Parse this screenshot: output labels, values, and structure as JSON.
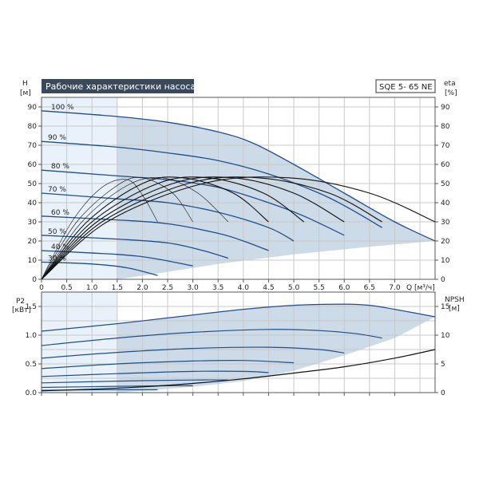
{
  "header": {
    "title": "Рабочие характеристики насоса",
    "model": "SQE 5- 65 NE"
  },
  "colors": {
    "curve_blue": "#1f4e8c",
    "curve_black": "#111111",
    "shade": "#cddbe8",
    "shade_light": "#e9f2fb",
    "title_bg": "#3a4a5c"
  },
  "chart_data": [
    {
      "type": "line",
      "name": "head",
      "ylabel_left": "H",
      "yunit_left": "[м]",
      "ylabel_right": "eta",
      "yunit_right": "[%]",
      "xlabel": "Q [м³/ч]",
      "xlim": [
        0,
        7.8
      ],
      "ylim": [
        0,
        95
      ],
      "x_ticks": [
        0,
        0.5,
        1.0,
        1.5,
        2.0,
        2.5,
        3.0,
        3.5,
        4.0,
        4.5,
        5.0,
        5.5,
        6.0,
        6.5,
        7.0
      ],
      "x_tick_labels": [
        "0",
        "0.5",
        "1.0",
        "1.5",
        "2.0",
        "2.5",
        "3.0",
        "3.5",
        "4.0",
        "4.5",
        "5.0",
        "5.5",
        "6.0",
        "6.5",
        "7.0"
      ],
      "y_ticks": [
        0,
        10,
        20,
        30,
        40,
        50,
        60,
        70,
        80,
        90
      ],
      "y_ticks_right": [
        0,
        10,
        20,
        30,
        40,
        50,
        60,
        70,
        80,
        90
      ],
      "speed_curves": [
        {
          "label": "100 %",
          "x": [
            0,
            1.5,
            2.5,
            3.5,
            4.2,
            5.0,
            6.0,
            7.0,
            7.8
          ],
          "y": [
            88,
            85,
            82,
            77,
            71,
            60,
            45,
            30,
            20
          ]
        },
        {
          "label": "90 %",
          "x": [
            0,
            1.5,
            2.5,
            3.5,
            4.5,
            5.5,
            6.1,
            6.75
          ],
          "y": [
            72,
            69,
            66,
            62,
            55,
            45,
            37,
            27
          ]
        },
        {
          "label": "80 %",
          "x": [
            0,
            1.5,
            2.5,
            3.5,
            4.5,
            5.2,
            6.0
          ],
          "y": [
            57,
            54,
            52,
            48,
            40,
            33,
            23
          ]
        },
        {
          "label": "70 %",
          "x": [
            0,
            1.5,
            2.5,
            3.5,
            4.5,
            5.0
          ],
          "y": [
            45,
            42,
            40,
            35,
            27,
            20
          ]
        },
        {
          "label": "60 %",
          "x": [
            0,
            1.5,
            2.5,
            3.5,
            4.0,
            4.5
          ],
          "y": [
            33,
            31,
            29,
            24,
            20,
            15
          ]
        },
        {
          "label": "50 %",
          "x": [
            0,
            1.5,
            2.5,
            3.2,
            3.7
          ],
          "y": [
            23,
            21,
            19,
            15,
            11
          ]
        },
        {
          "label": "40 %",
          "x": [
            0,
            1.5,
            2.2,
            3.0
          ],
          "y": [
            15,
            13,
            11,
            7
          ]
        },
        {
          "label": "30 %",
          "x": [
            0,
            1.0,
            1.7,
            2.3
          ],
          "y": [
            9,
            8,
            6,
            2
          ]
        }
      ],
      "shaded_region": {
        "x": [
          1.5,
          1.5,
          2.5,
          3.5,
          4.2,
          5.0,
          6.0,
          7.0,
          7.8,
          6.5,
          5.0,
          3.5,
          2.3,
          1.5
        ],
        "y": [
          0,
          85,
          82,
          77,
          71,
          60,
          45,
          30,
          20,
          17,
          13,
          8,
          3,
          0
        ]
      },
      "eta_curves": [
        {
          "x": [
            0,
            0.6,
            1.2,
            1.7,
            2.0,
            2.3
          ],
          "y": [
            0,
            30,
            48,
            52,
            44,
            30
          ]
        },
        {
          "x": [
            0,
            0.7,
            1.5,
            2.0,
            2.6,
            3.0
          ],
          "y": [
            0,
            30,
            49,
            53,
            45,
            30
          ]
        },
        {
          "x": [
            0,
            0.8,
            1.7,
            2.4,
            3.1,
            3.7
          ],
          "y": [
            0,
            30,
            49,
            53,
            45,
            30
          ]
        },
        {
          "x": [
            0,
            0.9,
            2.0,
            2.8,
            3.8,
            4.5
          ],
          "y": [
            0,
            30,
            50,
            53,
            45,
            30
          ]
        },
        {
          "x": [
            0,
            1.0,
            2.3,
            3.3,
            4.4,
            5.2
          ],
          "y": [
            0,
            30,
            50,
            53,
            45,
            30
          ]
        },
        {
          "x": [
            0,
            1.1,
            2.6,
            3.8,
            5.0,
            6.0
          ],
          "y": [
            0,
            30,
            50,
            53,
            45,
            30
          ]
        },
        {
          "x": [
            0,
            1.2,
            2.9,
            4.3,
            5.7,
            6.75
          ],
          "y": [
            0,
            30,
            50,
            53,
            45,
            30
          ]
        },
        {
          "x": [
            0,
            1.3,
            3.2,
            4.9,
            6.5,
            7.8
          ],
          "y": [
            0,
            30,
            50,
            53,
            45,
            30
          ]
        }
      ]
    },
    {
      "type": "line",
      "name": "power",
      "ylabel_left": "P2",
      "yunit_left": "[кВт]",
      "ylabel_right": "NPSH",
      "yunit_right": "[м]",
      "xlim": [
        0,
        7.8
      ],
      "ylim": [
        0,
        1.75
      ],
      "y_ticks": [
        0.0,
        0.5,
        1.0,
        1.5
      ],
      "y_tick_labels": [
        "0.0",
        "0.5",
        "1.0",
        "1.5"
      ],
      "y_ticks_right": [
        0,
        5,
        10,
        15
      ],
      "power_curves": [
        {
          "x": [
            0,
            1.5,
            2.5,
            4.0,
            5.0,
            6.0,
            6.5,
            7.0,
            7.8
          ],
          "y": [
            1.07,
            1.2,
            1.3,
            1.45,
            1.52,
            1.54,
            1.52,
            1.45,
            1.32
          ]
        },
        {
          "x": [
            0,
            1.5,
            3.0,
            4.5,
            5.5,
            6.2,
            6.75
          ],
          "y": [
            0.82,
            0.95,
            1.05,
            1.1,
            1.08,
            1.03,
            0.95
          ]
        },
        {
          "x": [
            0,
            1.5,
            3.0,
            4.5,
            5.5,
            6.0
          ],
          "y": [
            0.6,
            0.7,
            0.77,
            0.79,
            0.75,
            0.69
          ]
        },
        {
          "x": [
            0,
            1.5,
            3.0,
            4.0,
            5.0
          ],
          "y": [
            0.42,
            0.5,
            0.55,
            0.56,
            0.52
          ]
        },
        {
          "x": [
            0,
            1.5,
            3.0,
            4.0,
            4.5
          ],
          "y": [
            0.28,
            0.33,
            0.37,
            0.37,
            0.35
          ]
        },
        {
          "x": [
            0,
            1.5,
            3.0,
            3.7
          ],
          "y": [
            0.17,
            0.2,
            0.22,
            0.22
          ]
        },
        {
          "x": [
            0,
            1.5,
            2.5,
            3.0
          ],
          "y": [
            0.09,
            0.11,
            0.12,
            0.12
          ]
        },
        {
          "x": [
            0,
            1.2,
            1.8,
            2.3
          ],
          "y": [
            0.04,
            0.05,
            0.05,
            0.05
          ]
        }
      ],
      "shaded_region": {
        "x": [
          1.5,
          1.5,
          2.5,
          4.0,
          5.0,
          6.0,
          6.5,
          7.0,
          7.8,
          7.0,
          6.0,
          5.0,
          4.0,
          3.0,
          2.3,
          1.5
        ],
        "y": [
          0,
          1.2,
          1.3,
          1.45,
          1.52,
          1.54,
          1.52,
          1.45,
          1.32,
          0.95,
          0.65,
          0.38,
          0.2,
          0.1,
          0.05,
          0.0
        ]
      },
      "npsh_curve": {
        "x": [
          0,
          1.0,
          2.0,
          3.0,
          4.0,
          5.0,
          6.0,
          7.0,
          7.8
        ],
        "y": [
          0.3,
          0.6,
          1.0,
          1.6,
          2.4,
          3.4,
          4.5,
          6.0,
          7.5
        ]
      }
    }
  ]
}
